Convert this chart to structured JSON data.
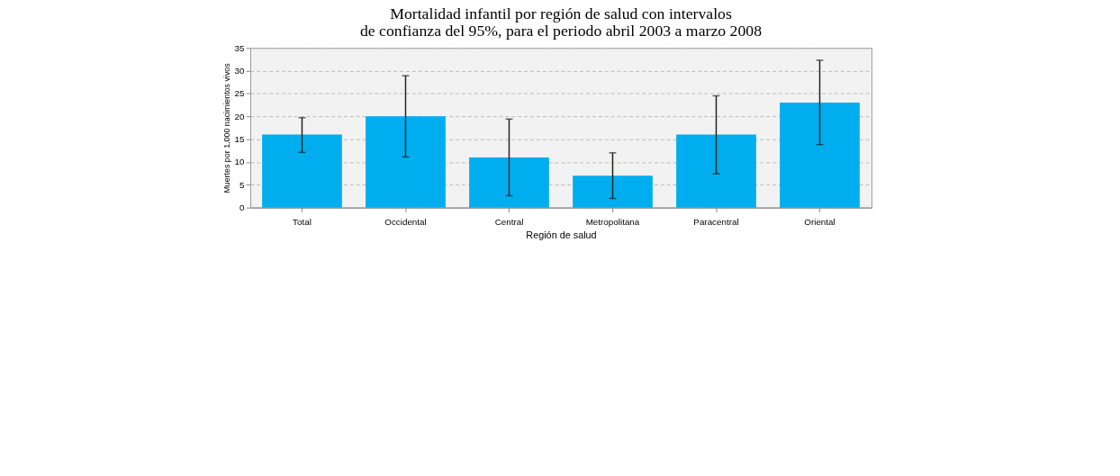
{
  "chart_data": {
    "type": "bar",
    "title": [
      "Mortalidad infantil por región de salud con intervalos",
      "de confianza del 95%, para el periodo abril 2003 a marzo 2008"
    ],
    "xlabel": "Región de salud",
    "ylabel": "Muertes por 1,000 nacimientos vivos",
    "categories": [
      "Total",
      "Occidental",
      "Central",
      "Metropolitana",
      "Paracentral",
      "Oriental"
    ],
    "values": [
      16,
      20,
      11,
      7,
      16,
      23
    ],
    "errors": [
      [
        12.1,
        19.7
      ],
      [
        11.1,
        28.9
      ],
      [
        2.6,
        19.4
      ],
      [
        2.0,
        12.0
      ],
      [
        7.4,
        24.5
      ],
      [
        13.8,
        32.3
      ]
    ],
    "color": "#00aeef",
    "ylim": [
      0,
      35
    ],
    "yticks": [
      0,
      5,
      10,
      15,
      20,
      25,
      30,
      35
    ],
    "grid": "y"
  }
}
